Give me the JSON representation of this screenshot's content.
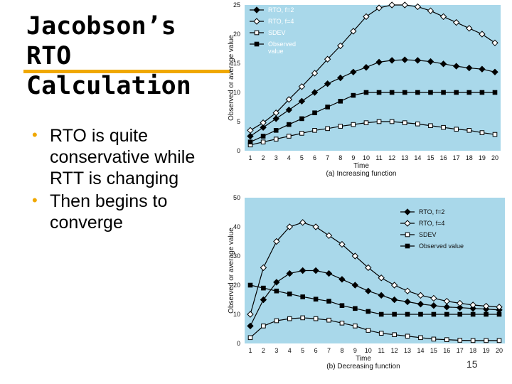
{
  "slide": {
    "title_lines": [
      "Jacobson’s",
      "RTO",
      "Calculation"
    ],
    "bullets": [
      "RTO is quite conservative while RTT is changing",
      "Then begins to converge"
    ],
    "page_number": "15",
    "colors": {
      "accent": "#f0a800",
      "plot_bg": "#a9d8ea",
      "series_line": "#000000"
    }
  },
  "chart_data": [
    {
      "type": "line",
      "caption": "(a) Increasing function",
      "xlabel": "Time",
      "ylabel": "Observed or average value",
      "x": [
        1,
        2,
        3,
        4,
        5,
        6,
        7,
        8,
        9,
        10,
        11,
        12,
        13,
        14,
        15,
        16,
        17,
        18,
        19,
        20
      ],
      "xlim": [
        1,
        20
      ],
      "ylim": [
        0,
        25
      ],
      "yticks": [
        0,
        5,
        10,
        15,
        20,
        25
      ],
      "legend_position": "top-left",
      "series": [
        {
          "name": "RTO, f=2",
          "marker": "diamond-filled",
          "values": [
            2.5,
            4,
            5.5,
            7,
            8.5,
            10,
            11.5,
            12.5,
            13.5,
            14.3,
            15.2,
            15.5,
            15.6,
            15.5,
            15.3,
            14.9,
            14.5,
            14.2,
            14,
            13.5
          ]
        },
        {
          "name": "RTO, f=4",
          "marker": "diamond-open",
          "values": [
            3.5,
            4.8,
            6.5,
            8.8,
            11,
            13.3,
            15.7,
            18,
            20.5,
            23,
            24.5,
            25,
            25,
            24.7,
            24,
            23,
            22,
            21,
            20,
            18.5
          ]
        },
        {
          "name": "SDEV",
          "marker": "square-open",
          "values": [
            1,
            1.5,
            2,
            2.5,
            3,
            3.5,
            3.8,
            4.2,
            4.5,
            4.8,
            5,
            5,
            4.8,
            4.6,
            4.3,
            4,
            3.7,
            3.5,
            3.1,
            2.8
          ]
        },
        {
          "name": "Observed value",
          "marker": "square-filled",
          "values": [
            1.5,
            2.5,
            3.5,
            4.5,
            5.5,
            6.5,
            7.5,
            8.5,
            9.5,
            10,
            10,
            10,
            10,
            10,
            10,
            10,
            10,
            10,
            10,
            10
          ]
        }
      ]
    },
    {
      "type": "line",
      "caption": "(b) Decreasing function",
      "xlabel": "Time",
      "ylabel": "Observed or average value",
      "x": [
        1,
        2,
        3,
        4,
        5,
        6,
        7,
        8,
        9,
        10,
        11,
        12,
        13,
        14,
        15,
        16,
        17,
        18,
        19,
        20
      ],
      "xlim": [
        1,
        20
      ],
      "ylim": [
        0,
        50
      ],
      "yticks": [
        0,
        10,
        20,
        30,
        40,
        50
      ],
      "legend_position": "top-right",
      "series": [
        {
          "name": "RTO, f=2",
          "marker": "diamond-filled",
          "values": [
            6,
            15,
            21,
            24,
            25,
            25,
            24,
            22,
            20,
            18,
            16.5,
            15,
            14.3,
            13.5,
            13,
            12.5,
            12.3,
            12,
            11.8,
            11.5
          ]
        },
        {
          "name": "RTO, f=4",
          "marker": "diamond-open",
          "values": [
            10,
            26,
            35,
            40,
            41.5,
            40,
            37,
            34,
            30,
            26,
            22.5,
            20,
            18,
            16.5,
            15.5,
            14.5,
            13.8,
            13.2,
            12.8,
            12.5
          ]
        },
        {
          "name": "SDEV",
          "marker": "square-open",
          "values": [
            2,
            6,
            7.8,
            8.5,
            8.8,
            8.5,
            8,
            7,
            6,
            4.5,
            3.5,
            3,
            2.5,
            2,
            1.5,
            1.3,
            1.1,
            1,
            1,
            1
          ]
        },
        {
          "name": "Observed value",
          "marker": "square-filled",
          "values": [
            20,
            19,
            18,
            17,
            16,
            15.2,
            14.5,
            13,
            12,
            11,
            10,
            10,
            10,
            10,
            10,
            10,
            10,
            10,
            10,
            10
          ]
        }
      ]
    }
  ]
}
